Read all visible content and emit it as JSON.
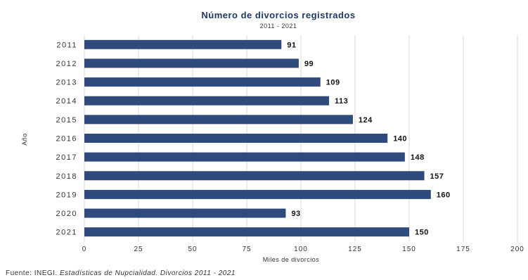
{
  "chart_data": {
    "type": "bar",
    "orientation": "horizontal",
    "title": "Número de divorcios registrados",
    "subtitle": "2011 - 2021",
    "categories": [
      "2011",
      "2012",
      "2013",
      "2014",
      "2015",
      "2016",
      "2017",
      "2018",
      "2019",
      "2020",
      "2021"
    ],
    "values": [
      91,
      99,
      109,
      113,
      124,
      140,
      148,
      157,
      160,
      93,
      150
    ],
    "data_labels": [
      "91",
      "99",
      "109",
      "113",
      "124",
      "140",
      "148",
      "157",
      "160",
      "93",
      "150"
    ],
    "xlabel": "Miles de divorcios",
    "ylabel": "Año",
    "xlim": [
      0,
      200
    ],
    "xticks": [
      0,
      25,
      50,
      75,
      100,
      125,
      150,
      175,
      200
    ],
    "grid": true,
    "bar_color": "#2f4a7d",
    "source_prefix": "Fuente: ",
    "source_org": "INEGI. ",
    "source_title": "Estadísticas de Nupcialidad. Divorcios 2011 - 2021"
  }
}
